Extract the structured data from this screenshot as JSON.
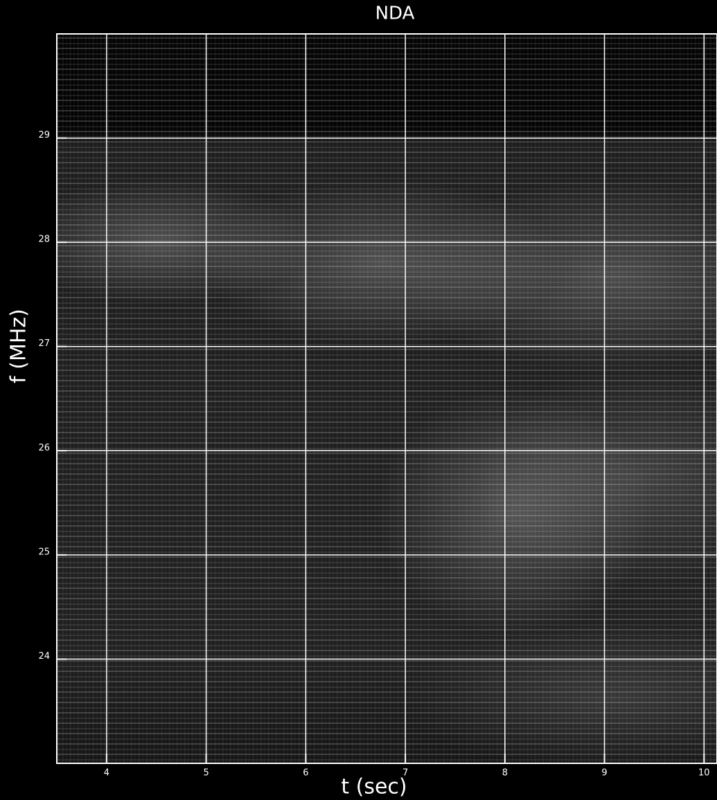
{
  "chart_data": {
    "type": "spectrogram",
    "title": "NDA",
    "x_label": "t (sec)",
    "y_label": "f (MHz)",
    "xlim": [
      3.5,
      10.13
    ],
    "xticks": [
      4,
      5,
      6,
      7,
      8,
      9,
      10
    ],
    "ylim": [
      23,
      30
    ],
    "yticks": [
      24,
      25,
      26,
      27,
      28,
      29
    ],
    "grid": true,
    "grid_color": "#ffffff"
  }
}
